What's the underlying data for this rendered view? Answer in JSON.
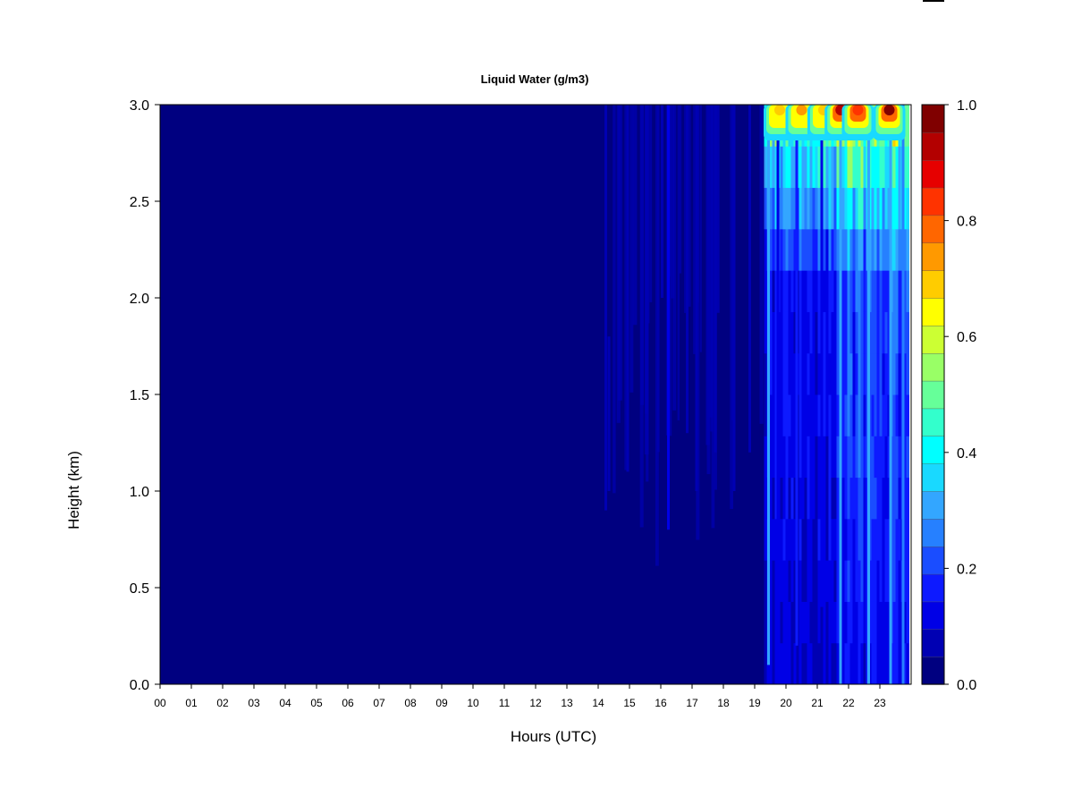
{
  "chart_data": {
    "type": "heatmap",
    "title": "Liquid Water (g/m3)",
    "xlabel": "Hours (UTC)",
    "ylabel": "Height (km)",
    "xlim": [
      0,
      24
    ],
    "ylim": [
      0,
      3.0
    ],
    "x_ticks": [
      "00",
      "01",
      "02",
      "03",
      "04",
      "05",
      "06",
      "07",
      "08",
      "09",
      "10",
      "11",
      "12",
      "13",
      "14",
      "15",
      "16",
      "17",
      "18",
      "19",
      "20",
      "21",
      "22",
      "23"
    ],
    "y_ticks": [
      "0.0",
      "0.5",
      "1.0",
      "1.5",
      "2.0",
      "2.5",
      "3.0"
    ],
    "colorbar": {
      "range": [
        0.0,
        1.0
      ],
      "ticks": [
        "0.0",
        "0.2",
        "0.4",
        "0.6",
        "0.8",
        "1.0"
      ],
      "colors": [
        "#000080",
        "#0000b3",
        "#0000e6",
        "#0d1aff",
        "#1a4dff",
        "#2680ff",
        "#33a6ff",
        "#19d9ff",
        "#00ffff",
        "#33ffcc",
        "#66ff99",
        "#99ff66",
        "#ccff33",
        "#ffff00",
        "#ffcc00",
        "#ff9900",
        "#ff6600",
        "#ff3300",
        "#e60000",
        "#b30000",
        "#800000"
      ]
    },
    "data_end_hour": 23.85,
    "observed_features": [
      {
        "hour": 14.2,
        "z0": 0.9,
        "z1": 3.0,
        "value": 0.06
      },
      {
        "hour": 14.3,
        "z0": 1.0,
        "z1": 1.8,
        "value": 0.05
      },
      {
        "hour": 14.9,
        "z0": 1.1,
        "z1": 3.0,
        "value": 0.06
      },
      {
        "hour": 15.5,
        "z0": 1.4,
        "z1": 3.0,
        "value": 0.05
      },
      {
        "hour": 16.0,
        "z0": 2.0,
        "z1": 3.0,
        "value": 0.05
      },
      {
        "hour": 16.2,
        "z0": 0.8,
        "z1": 3.0,
        "value": 0.08
      },
      {
        "hour": 16.8,
        "z0": 1.3,
        "z1": 3.0,
        "value": 0.06
      },
      {
        "hour": 17.1,
        "z0": 1.0,
        "z1": 3.0,
        "value": 0.05
      },
      {
        "hour": 17.7,
        "z0": 1.2,
        "z1": 3.0,
        "value": 0.06
      },
      {
        "hour": 18.3,
        "z0": 1.0,
        "z1": 3.0,
        "value": 0.05
      },
      {
        "hour": 18.8,
        "z0": 1.2,
        "z1": 3.0,
        "value": 0.05
      },
      {
        "hour": 19.4,
        "z0": 0.1,
        "z1": 3.0,
        "value": 0.3
      },
      {
        "hour": 19.7,
        "z0": 0.2,
        "z1": 3.0,
        "value": 0.12
      },
      {
        "hour": 20.3,
        "z0": 0.2,
        "z1": 3.0,
        "value": 0.14
      },
      {
        "hour": 21.1,
        "z0": 0.4,
        "z1": 3.0,
        "value": 0.12
      },
      {
        "hour": 21.7,
        "z0": 0.0,
        "z1": 3.0,
        "value": 0.3
      },
      {
        "hour": 22.6,
        "z0": 0.0,
        "z1": 3.0,
        "value": 0.28
      },
      {
        "hour": 23.3,
        "z0": 0.0,
        "z1": 3.0,
        "value": 0.3
      },
      {
        "hour": 23.7,
        "z0": 0.0,
        "z1": 3.0,
        "value": 0.25
      }
    ],
    "cloud_top_maxima": [
      {
        "hour": 19.8,
        "value": 0.7
      },
      {
        "hour": 20.5,
        "value": 0.75
      },
      {
        "hour": 21.2,
        "value": 0.7
      },
      {
        "hour": 21.75,
        "value": 0.95
      },
      {
        "hour": 22.3,
        "value": 0.85
      },
      {
        "hour": 23.3,
        "value": 1.0
      }
    ]
  }
}
